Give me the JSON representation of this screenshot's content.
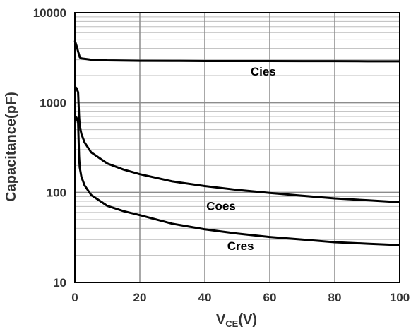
{
  "chart_data": {
    "type": "line",
    "title": "",
    "xlabel_main": "V",
    "xlabel_sub": "CE",
    "xlabel_unit": "(V)",
    "ylabel": "Capacitance(pF)",
    "xlim": [
      0,
      100
    ],
    "ylim": [
      10,
      10000
    ],
    "yscale": "log",
    "grid": true,
    "x_ticks": [
      "0",
      "20",
      "40",
      "60",
      "80",
      "100"
    ],
    "y_ticks": [
      "10",
      "100",
      "1000",
      "10000"
    ],
    "series": [
      {
        "name": "Cies",
        "x": [
          0,
          0.5,
          1,
          1.5,
          2,
          5,
          10,
          20,
          30,
          40,
          50,
          60,
          70,
          80,
          90,
          100
        ],
        "y": [
          4900,
          4300,
          3700,
          3200,
          3100,
          3000,
          2950,
          2920,
          2910,
          2900,
          2900,
          2900,
          2890,
          2890,
          2880,
          2880
        ]
      },
      {
        "name": "Coes",
        "x": [
          0,
          0.5,
          1,
          1.3,
          1.5,
          2,
          3,
          5,
          10,
          15,
          20,
          30,
          40,
          50,
          60,
          70,
          80,
          90,
          100
        ],
        "y": [
          1500,
          1450,
          1300,
          700,
          550,
          450,
          360,
          280,
          210,
          180,
          160,
          133,
          118,
          107,
          99,
          92,
          86,
          82,
          78
        ]
      },
      {
        "name": "Cres",
        "x": [
          0,
          0.5,
          1,
          1.3,
          1.5,
          2,
          3,
          5,
          10,
          15,
          20,
          30,
          40,
          50,
          60,
          70,
          80,
          90,
          100
        ],
        "y": [
          700,
          680,
          600,
          250,
          190,
          150,
          120,
          94,
          71,
          62,
          56,
          45,
          39,
          35,
          32,
          30,
          28,
          27,
          26
        ]
      }
    ]
  }
}
